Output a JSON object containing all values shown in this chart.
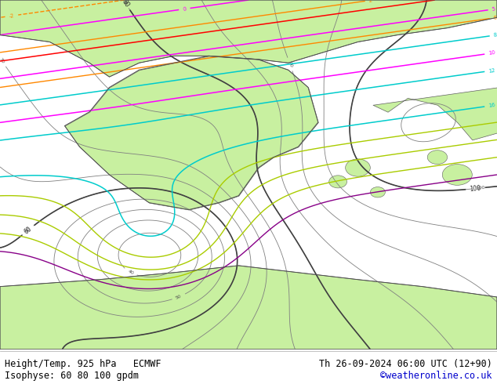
{
  "title_left": "Height/Temp. 925 hPa   ECMWF",
  "title_right": "Th 26-09-2024 06:00 UTC (12+90)",
  "subtitle_left": "Isophyse: 60 80 100 gpdm",
  "subtitle_right": "©weatheronline.co.uk",
  "subtitle_right_color": "#0000cc",
  "background_land": "#c8f0a0",
  "background_sea": "#d0d8e8",
  "background_fig": "#ffffff",
  "text_color": "#000000",
  "figsize": [
    6.34,
    4.9
  ],
  "dpi": 100,
  "contour_colors": {
    "gray": "#808080",
    "magenta": "#ff00ff",
    "cyan": "#00cccc",
    "orange": "#ff8800",
    "yellow_green": "#aacc00",
    "yellow": "#ffcc00",
    "red": "#ff0000",
    "blue": "#0000ff",
    "purple": "#880088",
    "dark_gray": "#404040"
  }
}
